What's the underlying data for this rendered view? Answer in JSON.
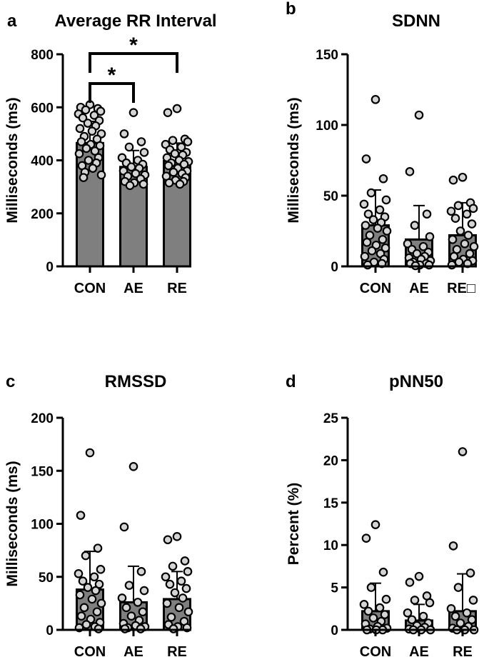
{
  "chart_data": [
    {
      "letter": "a",
      "type": "bar",
      "title": "Average RR Interval",
      "ylabel": "Milliseconds (ms)",
      "xlabel": "",
      "categories": [
        "CON",
        "AE",
        "RE"
      ],
      "ylim": [
        0,
        800
      ],
      "yticks": [
        0,
        200,
        400,
        600,
        800
      ],
      "values": [
        465,
        375,
        397
      ],
      "sd": [
        82,
        62,
        68
      ],
      "points": [
        [
          610,
          600,
          595,
          590,
          585,
          575,
          570,
          560,
          550,
          540,
          530,
          520,
          510,
          500,
          490,
          480,
          470,
          460,
          455,
          445,
          435,
          425,
          410,
          400,
          390,
          380,
          370,
          355,
          345,
          335
        ],
        [
          580,
          500,
          470,
          450,
          430,
          410,
          400,
          390,
          385,
          375,
          370,
          360,
          350,
          345,
          340,
          330,
          320,
          315,
          310,
          305
        ],
        [
          595,
          580,
          480,
          475,
          470,
          460,
          450,
          440,
          430,
          425,
          420,
          410,
          400,
          395,
          390,
          385,
          380,
          370,
          360,
          355,
          350,
          340,
          335,
          325,
          320,
          315,
          310
        ]
      ],
      "significance": [
        {
          "from": "CON",
          "to": "AE",
          "label": "*"
        },
        {
          "from": "CON",
          "to": "RE",
          "label": "*"
        }
      ]
    },
    {
      "letter": "b",
      "type": "bar",
      "title": "SDNN",
      "ylabel": "Milliseconds (ms)",
      "xlabel": "",
      "categories": [
        "CON",
        "AE",
        "RE"
      ],
      "ylim": [
        0,
        150
      ],
      "yticks": [
        0,
        50,
        100,
        150
      ],
      "values": [
        29,
        19,
        22
      ],
      "sd": [
        25,
        24,
        23
      ],
      "points": [
        [
          118,
          76,
          62,
          52,
          47,
          44,
          40,
          37,
          35,
          33,
          31,
          29,
          27,
          25,
          22,
          19,
          17,
          15,
          13,
          11,
          9,
          7,
          5,
          3,
          2,
          1
        ],
        [
          107,
          67,
          37,
          29,
          21,
          16,
          14,
          12,
          10,
          9,
          7,
          6,
          5,
          4,
          3,
          2,
          2,
          1,
          1,
          0.5
        ],
        [
          63,
          61,
          45,
          43,
          41,
          39,
          37,
          34,
          30,
          25,
          22,
          19,
          16,
          14,
          12,
          9,
          7,
          5,
          4,
          3,
          2,
          1
        ]
      ],
      "annotation": "RE□"
    },
    {
      "letter": "c",
      "type": "bar",
      "title": "RMSSD",
      "ylabel": "Milliseconds (ms)",
      "xlabel": "",
      "categories": [
        "CON",
        "AE",
        "RE"
      ],
      "ylim": [
        0,
        200
      ],
      "yticks": [
        0,
        50,
        100,
        150,
        200
      ],
      "values": [
        38,
        26,
        29
      ],
      "sd": [
        36,
        34,
        26
      ],
      "points": [
        [
          167,
          108,
          77,
          70,
          57,
          53,
          50,
          46,
          43,
          40,
          37,
          33,
          29,
          25,
          21,
          17,
          13,
          10,
          7,
          5,
          3,
          2,
          1
        ],
        [
          154,
          97,
          55,
          42,
          37,
          30,
          26,
          21,
          17,
          13,
          9,
          6,
          4,
          3,
          2,
          1,
          1
        ],
        [
          88,
          85,
          65,
          60,
          55,
          50,
          46,
          43,
          39,
          35,
          30,
          25,
          21,
          17,
          12,
          8,
          5,
          3,
          2,
          1
        ]
      ]
    },
    {
      "letter": "d",
      "type": "bar",
      "title": "pNN50",
      "ylabel": "Percent (%)",
      "xlabel": "",
      "categories": [
        "CON",
        "AE",
        "RE"
      ],
      "ylim": [
        0,
        25
      ],
      "yticks": [
        0,
        5,
        10,
        15,
        20,
        25
      ],
      "values": [
        2.2,
        1.1,
        2.2
      ],
      "sd": [
        3.3,
        1.9,
        4.4
      ],
      "points": [
        [
          12.4,
          10.8,
          6.8,
          5.0,
          3.6,
          3.0,
          2.6,
          2.2,
          1.8,
          1.4,
          1.0,
          0.7,
          0.4,
          0.2,
          0.1,
          0,
          0,
          0
        ],
        [
          6.3,
          5.6,
          4.0,
          3.5,
          3.2,
          2.0,
          1.6,
          1.2,
          0.8,
          0.5,
          0.3,
          0.1,
          0,
          0,
          0
        ],
        [
          21.0,
          9.9,
          6.7,
          5.0,
          3.5,
          2.5,
          2.0,
          1.6,
          1.2,
          0.8,
          0.4,
          0.2,
          0,
          0,
          0
        ]
      ]
    }
  ]
}
